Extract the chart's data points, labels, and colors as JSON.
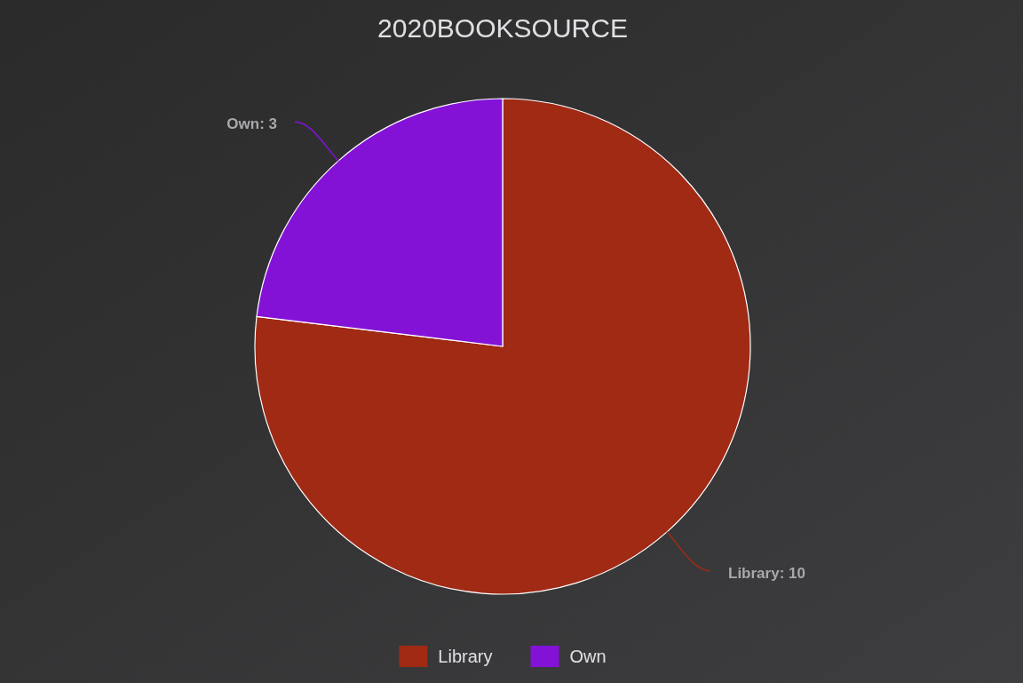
{
  "chart_data": {
    "type": "pie",
    "title": "2020BOOKSOURCE",
    "categories": [
      "Library",
      "Own"
    ],
    "values": [
      10,
      3
    ],
    "colors": [
      "#a02a14",
      "#8412d6"
    ],
    "legend": "bottom",
    "value_labels": [
      "Library: 10",
      "Own: 3"
    ]
  }
}
